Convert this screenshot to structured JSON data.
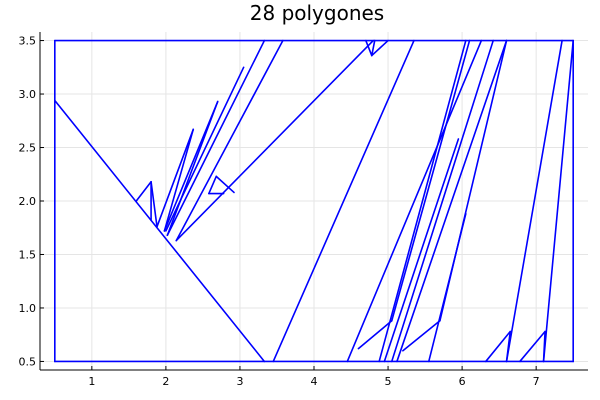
{
  "chart_data": {
    "type": "line",
    "title": "28 polygones",
    "xlabel": "",
    "ylabel": "",
    "xlim": [
      0.3,
      7.7
    ],
    "ylim": [
      0.42,
      3.58
    ],
    "xticks": [
      1,
      2,
      3,
      4,
      5,
      6,
      7
    ],
    "yticks": [
      0.5,
      1.0,
      1.5,
      2.0,
      2.5,
      3.0,
      3.5
    ],
    "xtick_labels": [
      "1",
      "2",
      "3",
      "4",
      "5",
      "6",
      "7"
    ],
    "ytick_labels": [
      "0.5",
      "1.0",
      "1.5",
      "2.0",
      "2.5",
      "3.0",
      "3.5"
    ],
    "grid": true,
    "legend": "none",
    "line_color": "#0000ff",
    "segments": [
      [
        [
          0.5,
          0.5
        ],
        [
          7.5,
          0.5
        ]
      ],
      [
        [
          7.5,
          0.5
        ],
        [
          7.5,
          3.5
        ]
      ],
      [
        [
          7.5,
          3.5
        ],
        [
          0.5,
          3.5
        ]
      ],
      [
        [
          0.5,
          3.5
        ],
        [
          0.5,
          0.5
        ]
      ],
      [
        [
          0.5,
          2.94
        ],
        [
          3.33,
          0.5
        ]
      ],
      [
        [
          3.45,
          0.5
        ],
        [
          5.35,
          3.5
        ]
      ],
      [
        [
          1.6,
          2.0
        ],
        [
          1.8,
          2.18
        ]
      ],
      [
        [
          1.8,
          2.18
        ],
        [
          1.8,
          1.82
        ]
      ],
      [
        [
          1.8,
          2.18
        ],
        [
          1.88,
          1.76
        ]
      ],
      [
        [
          1.88,
          1.76
        ],
        [
          2.37,
          2.67
        ]
      ],
      [
        [
          2.37,
          2.67
        ],
        [
          1.98,
          1.72
        ]
      ],
      [
        [
          1.98,
          1.72
        ],
        [
          2.7,
          2.93
        ]
      ],
      [
        [
          2.7,
          2.93
        ],
        [
          2.02,
          1.68
        ]
      ],
      [
        [
          2.0,
          1.72
        ],
        [
          3.05,
          3.25
        ]
      ],
      [
        [
          2.02,
          1.68
        ],
        [
          3.33,
          3.5
        ]
      ],
      [
        [
          2.14,
          1.63
        ],
        [
          3.58,
          3.5
        ]
      ],
      [
        [
          2.14,
          1.63
        ],
        [
          4.8,
          3.5
        ]
      ],
      [
        [
          2.58,
          2.07
        ],
        [
          2.78,
          2.07
        ]
      ],
      [
        [
          2.58,
          2.07
        ],
        [
          2.68,
          2.23
        ]
      ],
      [
        [
          2.68,
          2.23
        ],
        [
          2.92,
          2.08
        ]
      ],
      [
        [
          4.7,
          3.5
        ],
        [
          4.78,
          3.36
        ]
      ],
      [
        [
          4.78,
          3.36
        ],
        [
          4.82,
          3.5
        ]
      ],
      [
        [
          4.78,
          3.36
        ],
        [
          5.0,
          3.5
        ]
      ],
      [
        [
          4.45,
          0.5
        ],
        [
          6.26,
          3.5
        ]
      ],
      [
        [
          4.6,
          0.62
        ],
        [
          5.05,
          0.88
        ]
      ],
      [
        [
          5.05,
          0.88
        ],
        [
          6.1,
          3.5
        ]
      ],
      [
        [
          4.88,
          0.5
        ],
        [
          6.05,
          3.5
        ]
      ],
      [
        [
          4.95,
          0.5
        ],
        [
          5.95,
          2.58
        ]
      ],
      [
        [
          5.05,
          0.5
        ],
        [
          6.42,
          3.5
        ]
      ],
      [
        [
          5.12,
          0.5
        ],
        [
          6.6,
          3.5
        ]
      ],
      [
        [
          5.2,
          0.6
        ],
        [
          5.7,
          0.88
        ]
      ],
      [
        [
          5.7,
          0.88
        ],
        [
          6.6,
          3.5
        ]
      ],
      [
        [
          5.55,
          0.5
        ],
        [
          6.05,
          1.88
        ]
      ],
      [
        [
          6.32,
          0.5
        ],
        [
          6.65,
          0.78
        ]
      ],
      [
        [
          6.65,
          0.78
        ],
        [
          6.6,
          0.5
        ]
      ],
      [
        [
          6.6,
          0.5
        ],
        [
          7.35,
          3.5
        ]
      ],
      [
        [
          6.78,
          0.5
        ],
        [
          7.12,
          0.78
        ]
      ],
      [
        [
          7.12,
          0.78
        ],
        [
          7.1,
          0.5
        ]
      ],
      [
        [
          7.1,
          0.5
        ],
        [
          7.5,
          3.5
        ]
      ]
    ]
  }
}
